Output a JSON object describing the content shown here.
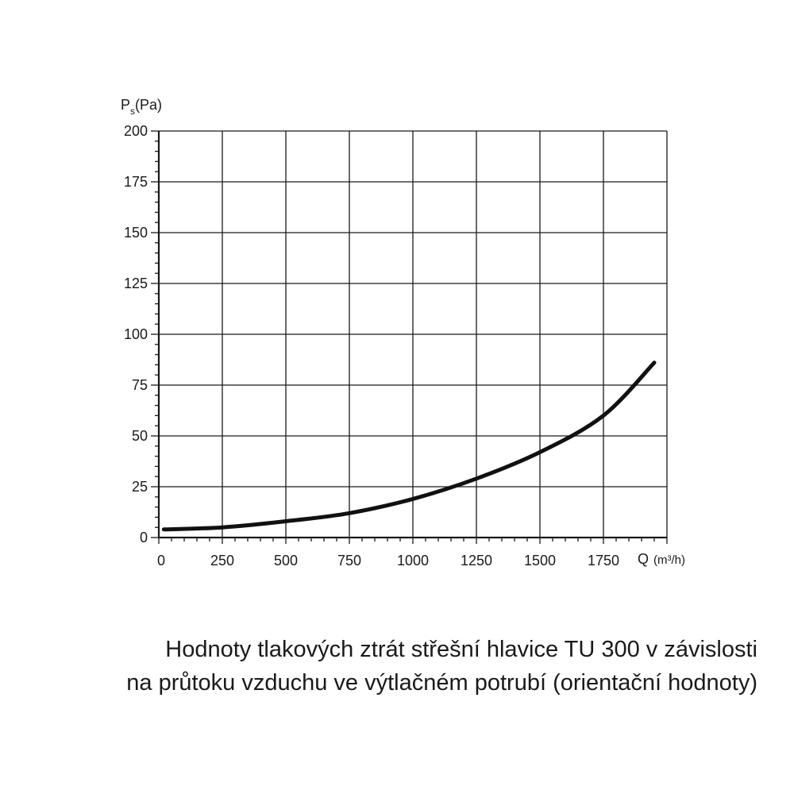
{
  "chart_data": {
    "type": "line",
    "ylabel_main": "P",
    "ylabel_sub": "s",
    "ylabel_unit": "(Pa)",
    "xlabel_main": "Q",
    "xlabel_unit": "(m³/h)",
    "xlim": [
      0,
      2000
    ],
    "ylim": [
      0,
      200
    ],
    "x_ticks": [
      0,
      250,
      500,
      750,
      1000,
      1250,
      1500,
      1750
    ],
    "x_tick_labels": [
      "0",
      "250",
      "500",
      "750",
      "1000",
      "1250",
      "1500",
      "1750"
    ],
    "y_ticks": [
      0,
      25,
      50,
      75,
      100,
      125,
      150,
      175,
      200
    ],
    "y_tick_labels": [
      "0",
      "25",
      "50",
      "75",
      "100",
      "125",
      "150",
      "175",
      "200"
    ],
    "grid": true,
    "series": [
      {
        "x": [
          20,
          250,
          500,
          750,
          1000,
          1250,
          1500,
          1750,
          1950
        ],
        "y": [
          4,
          5,
          8,
          12,
          19,
          29,
          42,
          60,
          86
        ]
      }
    ]
  },
  "caption": {
    "line1": "Hodnoty tlakových ztrát střešní hlavice TU 300 v závislosti",
    "line2": "na průtoku vzduchu ve výtlačném potrubí (orientační hodnoty)"
  }
}
